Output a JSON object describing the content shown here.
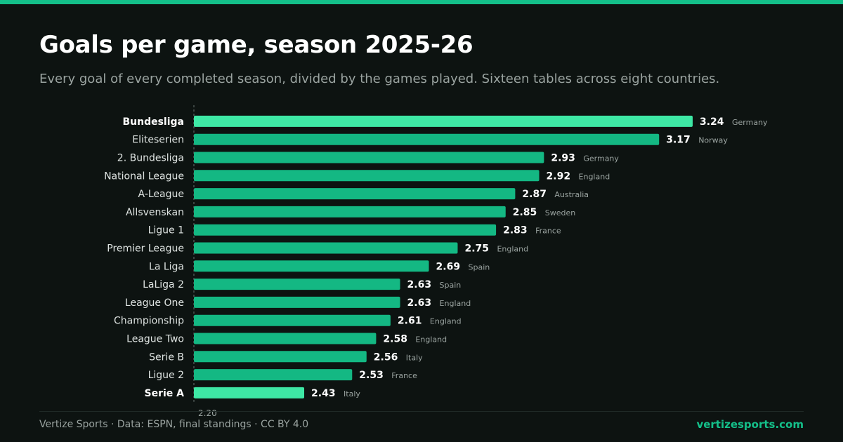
{
  "header": {
    "title": "Goals per game, season 2025-26",
    "subtitle": "Every goal of every completed season, divided by the games played. Sixteen tables across eight countries."
  },
  "footer": {
    "credit": "Vertize Sports · Data: ESPN, final standings · CC BY 4.0",
    "site": "vertizesports.com"
  },
  "colors": {
    "accent": "#14c08a",
    "highlight": "#3ee8a5",
    "bar": "#14b883",
    "label": "#dfe4e2",
    "country": "#9aa3a0"
  },
  "chart_data": {
    "type": "bar",
    "orientation": "horizontal",
    "title": "Goals per game, season 2025-26",
    "xlim": [
      2.2,
      3.3
    ],
    "x_tick_labels": [
      "2.20"
    ],
    "categories": [
      "Bundesliga",
      "Eliteserien",
      "2. Bundesliga",
      "National League",
      "A-League",
      "Allsvenskan",
      "Ligue 1",
      "Premier League",
      "La Liga",
      "LaLiga 2",
      "League One",
      "Championship",
      "League Two",
      "Serie B",
      "Ligue 2",
      "Serie A"
    ],
    "values": [
      3.24,
      3.17,
      2.93,
      2.92,
      2.87,
      2.85,
      2.83,
      2.75,
      2.69,
      2.63,
      2.63,
      2.61,
      2.58,
      2.56,
      2.53,
      2.43
    ],
    "value_labels": [
      "3.24",
      "3.17",
      "2.93",
      "2.92",
      "2.87",
      "2.85",
      "2.83",
      "2.75",
      "2.69",
      "2.63",
      "2.63",
      "2.61",
      "2.58",
      "2.56",
      "2.53",
      "2.43"
    ],
    "countries": [
      "Germany",
      "Norway",
      "Germany",
      "England",
      "Australia",
      "Sweden",
      "France",
      "England",
      "Spain",
      "Spain",
      "England",
      "England",
      "England",
      "Italy",
      "France",
      "Italy"
    ],
    "highlighted": [
      "Bundesliga",
      "Serie A"
    ]
  }
}
